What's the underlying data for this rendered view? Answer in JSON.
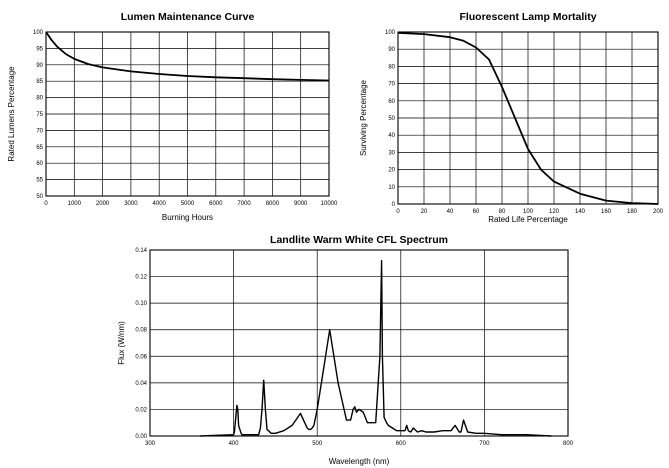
{
  "chart_data": [
    {
      "type": "line",
      "title": "Lumen Maintenance Curve",
      "xlabel": "Burning Hours",
      "ylabel": "Rated Lumens Percentage",
      "xlim": [
        0,
        10000
      ],
      "ylim": [
        50,
        100
      ],
      "grid": true,
      "xticks": [
        "0",
        "1000",
        "2000",
        "3000",
        "4000",
        "5000",
        "6000",
        "7000",
        "8000",
        "9000",
        "10000"
      ],
      "yticks": [
        "50",
        "55",
        "60",
        "65",
        "70",
        "75",
        "80",
        "85",
        "90",
        "95",
        "100"
      ],
      "series": [
        {
          "x": [
            0,
            200,
            400,
            700,
            1000,
            1500,
            2000,
            3000,
            4000,
            5000,
            6000,
            7000,
            8000,
            9000,
            10000
          ],
          "y": [
            100,
            97.5,
            95.5,
            93.3,
            91.8,
            90.2,
            89.2,
            88.0,
            87.2,
            86.6,
            86.2,
            85.9,
            85.6,
            85.4,
            85.2
          ]
        }
      ]
    },
    {
      "type": "line",
      "title": "Fluorescent Lamp Mortality",
      "xlabel": "Rated Life Percentage",
      "ylabel": "Surviving Percentage",
      "xlim": [
        0,
        200
      ],
      "ylim": [
        0,
        100
      ],
      "grid": true,
      "xticks": [
        "0",
        "20",
        "40",
        "60",
        "80",
        "100",
        "120",
        "140",
        "160",
        "180",
        "200"
      ],
      "yticks": [
        "0",
        "10",
        "20",
        "30",
        "40",
        "50",
        "60",
        "70",
        "80",
        "90",
        "100"
      ],
      "series": [
        {
          "x": [
            0,
            20,
            40,
            50,
            60,
            70,
            80,
            90,
            100,
            110,
            120,
            140,
            160,
            180,
            200
          ],
          "y": [
            99.5,
            98.8,
            97,
            95,
            91,
            84,
            68,
            50,
            32,
            20,
            13,
            6,
            2,
            0.5,
            0
          ]
        }
      ]
    },
    {
      "type": "line",
      "title": "Landlite Warm White CFL Spectrum",
      "xlabel": "Wavelength (nm)",
      "ylabel": "Flux (W/nm)",
      "xlim": [
        300,
        800
      ],
      "ylim": [
        0,
        0.14
      ],
      "grid": true,
      "xticks": [
        "300",
        "400",
        "500",
        "600",
        "700",
        "800"
      ],
      "yticks": [
        "0.00",
        "0.02",
        "0.04",
        "0.06",
        "0.08",
        "0.10",
        "0.12",
        "0.14"
      ],
      "series": [
        {
          "x": [
            360,
            400,
            401,
            404,
            405,
            406,
            409,
            410,
            430,
            432,
            434,
            436,
            438,
            440,
            445,
            450,
            460,
            470,
            480,
            485,
            488,
            490,
            492,
            494,
            496,
            500,
            505,
            515,
            525,
            535,
            540,
            543,
            545,
            547,
            550,
            555,
            560,
            570,
            575,
            577,
            578,
            580,
            583,
            585,
            590,
            595,
            605,
            607,
            609,
            612,
            615,
            620,
            625,
            630,
            640,
            650,
            660,
            665,
            668,
            670,
            672,
            675,
            680,
            690,
            700,
            720,
            750,
            780
          ],
          "y": [
            0,
            0.001,
            0.003,
            0.023,
            0.02,
            0.008,
            0.002,
            0.001,
            0.001,
            0.006,
            0.02,
            0.042,
            0.02,
            0.005,
            0.002,
            0.002,
            0.004,
            0.008,
            0.017,
            0.01,
            0.006,
            0.005,
            0.005,
            0.006,
            0.008,
            0.02,
            0.04,
            0.08,
            0.04,
            0.012,
            0.012,
            0.02,
            0.022,
            0.018,
            0.02,
            0.018,
            0.01,
            0.01,
            0.06,
            0.132,
            0.06,
            0.014,
            0.01,
            0.008,
            0.006,
            0.004,
            0.004,
            0.008,
            0.004,
            0.003,
            0.006,
            0.003,
            0.004,
            0.003,
            0.003,
            0.004,
            0.004,
            0.008,
            0.005,
            0.003,
            0.003,
            0.012,
            0.003,
            0.002,
            0.002,
            0.001,
            0.001,
            0
          ]
        }
      ]
    }
  ]
}
